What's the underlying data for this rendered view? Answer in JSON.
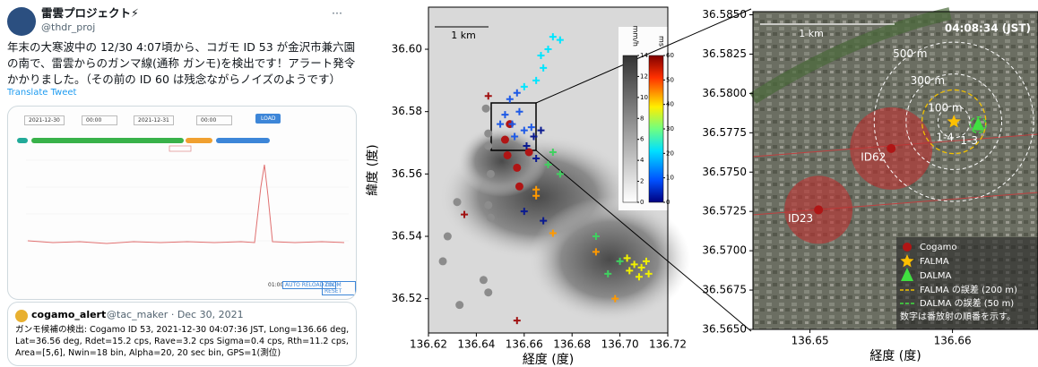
{
  "tweet": {
    "name": "雷雲プロジェクト⚡",
    "handle": "@thdr_proj",
    "more": "···",
    "text": "年末の大寒波中の 12/30 4:07頃から、コガモ ID 53 が金沢市兼六園の南で、雷雲からのガンマ線(通称 ガンモ)を検出です！アラート発令かかりました。（その前の ID 60 は残念ながらノイズのようです）",
    "translate": "Translate Tweet",
    "image": {
      "date_from": "2021-12-30",
      "time_from": "00:00",
      "date_to": "2021-12-31",
      "time_to": "00:00",
      "button": "LOAD",
      "button2": "AUTO RELOAD ON",
      "button3": "ZOOM RESET",
      "time": "01:00"
    },
    "quote": {
      "name": "cogamo_alert",
      "meta": "@tac_maker · Dec 30, 2021",
      "text": "ガンモ候補の検出: Cogamo ID 53, 2021-12-30 04:07:36 JST, Long=136.66 deg, Lat=36.56 deg, Rdet=15.2 cps, Rave=3.2 cps Sigma=0.4 cps, Rth=11.2 cps, Area=[5,6], Nwin=18 bin, Alpha=20, 20 sec bin, GPS=1(測位)"
    }
  },
  "chart_data": [
    {
      "type": "scatter",
      "xlabel": "経度 (度)",
      "ylabel": "緯度 (度)",
      "scale_label": "1 km",
      "xlim": [
        136.62,
        136.72
      ],
      "ylim": [
        36.509,
        36.6135
      ],
      "xticks": [
        136.62,
        136.64,
        136.66,
        136.68,
        {
          "value": 136.7,
          "label": "136.70"
        },
        136.72
      ],
      "yticks": [
        36.52,
        36.54,
        36.56,
        36.58,
        {
          "value": 36.6,
          "label": "36.60"
        }
      ],
      "colorbars": [
        {
          "label": "mm/h",
          "lim": [
            0,
            14
          ],
          "ticks": [
            0,
            2,
            4,
            6,
            8,
            10,
            12,
            14
          ]
        },
        {
          "label": "ms",
          "lim": [
            0,
            60
          ],
          "ticks": [
            0,
            10,
            20,
            30,
            40,
            50,
            60
          ]
        }
      ],
      "series": [
        {
          "marker": "dot",
          "color": "#8c8c8c",
          "x": [
            136.644,
            136.645,
            136.645,
            136.646,
            136.645,
            136.646,
            136.628,
            136.626,
            136.633,
            136.632,
            136.643,
            136.645
          ],
          "y": [
            36.581,
            36.573,
            36.569,
            36.56,
            36.55,
            36.546,
            36.54,
            36.532,
            36.518,
            36.551,
            36.526,
            36.522
          ]
        },
        {
          "marker": "dot",
          "color": "#b01515",
          "x": [
            136.652,
            136.654,
            136.657,
            136.653,
            136.662,
            136.658
          ],
          "y": [
            36.571,
            36.576,
            36.562,
            36.566,
            36.567,
            36.556
          ]
        },
        {
          "marker": "plus",
          "color": "#00e5ff",
          "x": [
            136.667,
            136.67,
            136.672,
            136.668,
            136.665,
            136.66,
            136.675
          ],
          "y": [
            36.598,
            36.6,
            36.604,
            36.594,
            36.59,
            36.588,
            36.603
          ]
        },
        {
          "marker": "plus",
          "color": "#1e5ae6",
          "x": [
            136.652,
            136.655,
            136.658,
            136.656,
            136.66,
            136.65,
            136.663,
            136.654,
            136.657
          ],
          "y": [
            36.579,
            36.576,
            36.58,
            36.572,
            36.574,
            36.576,
            36.575,
            36.584,
            36.586
          ]
        },
        {
          "marker": "plus",
          "color": "#0a1a90",
          "x": [
            136.661,
            136.664,
            136.667,
            136.665,
            136.66,
            136.668
          ],
          "y": [
            36.569,
            36.572,
            36.574,
            36.565,
            36.548,
            36.545
          ]
        },
        {
          "marker": "plus",
          "color": "#40d060",
          "x": [
            136.67,
            136.672,
            136.675,
            136.69,
            136.7,
            136.695
          ],
          "y": [
            36.563,
            36.567,
            36.56,
            36.54,
            36.532,
            36.528
          ]
        },
        {
          "marker": "plus",
          "color": "#f0f000",
          "x": [
            136.703,
            136.706,
            136.709,
            136.711,
            136.708,
            136.704,
            136.712
          ],
          "y": [
            36.533,
            36.531,
            36.53,
            36.532,
            36.527,
            36.529,
            36.528
          ]
        },
        {
          "marker": "plus",
          "color": "#ff9900",
          "x": [
            136.672,
            136.665,
            136.698,
            136.69,
            136.665
          ],
          "y": [
            36.541,
            36.553,
            36.52,
            36.535,
            36.555
          ]
        },
        {
          "marker": "plus",
          "color": "#a01010",
          "x": [
            136.635,
            136.657,
            136.645
          ],
          "y": [
            36.547,
            36.513,
            36.585
          ]
        }
      ]
    },
    {
      "type": "scatter",
      "xlabel": "経度 (度)",
      "time": "04:08:34 (JST)",
      "scale_label": "1 km",
      "note": "数字は番放射の順番を示す。",
      "xlim": [
        136.646,
        136.666
      ],
      "ylim": [
        36.565,
        36.5852
      ],
      "xticks": [
        136.65,
        136.66
      ],
      "yticks": [
        {
          "value": 36.585,
          "label": "36.5850"
        },
        36.5825,
        {
          "value": 36.58,
          "label": "36.5800"
        },
        36.5775,
        {
          "value": 36.575,
          "label": "36.5750"
        },
        36.5725,
        {
          "value": 36.57,
          "label": "36.5700"
        },
        36.5675,
        {
          "value": 36.565,
          "label": "36.5650"
        }
      ],
      "rings": [
        {
          "value": 100,
          "label": "100 m"
        },
        {
          "value": 300,
          "label": "300 m"
        },
        {
          "value": 500,
          "label": "500 m"
        }
      ],
      "series": [
        {
          "name": "Cogamo",
          "marker": "circle",
          "color": "#b01515",
          "x": [
            136.6506,
            136.6557
          ],
          "y": [
            36.5726,
            36.5765
          ],
          "point_labels": [
            "ID23",
            "ID62"
          ]
        },
        {
          "name": "FALMA",
          "marker": "star",
          "color": "#ffc000",
          "x": [
            136.6601
          ],
          "y": [
            36.5782
          ],
          "point_labels": [
            "1-4"
          ]
        },
        {
          "name": "DALMA",
          "marker": "triangle",
          "color": "#40e040",
          "x": [
            136.6618
          ],
          "y": [
            36.578
          ],
          "point_labels": [
            "1-3"
          ]
        }
      ],
      "error_circles": [
        {
          "name": "FALMA の誤差 (200 m)",
          "radius": 200,
          "color": "#f0c000"
        },
        {
          "name": "DALMA の誤差 (50 m)",
          "radius": 50,
          "color": "#40e040"
        }
      ]
    }
  ]
}
